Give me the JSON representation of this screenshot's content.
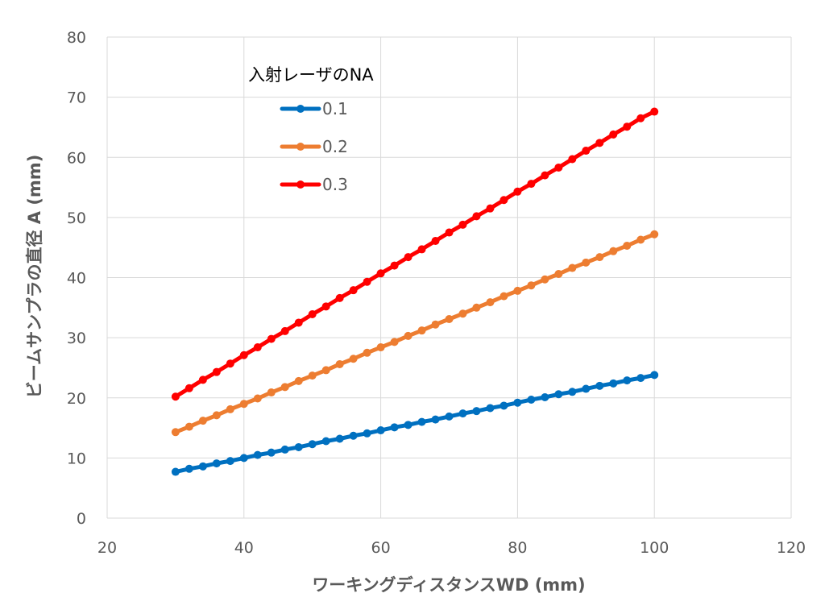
{
  "chart_data": {
    "type": "line",
    "title": "",
    "xlabel": "ワーキングディスタンスWD (mm)",
    "ylabel": "ビームサンプラの直径 A (mm)",
    "xlim": [
      20,
      120
    ],
    "ylim": [
      0,
      80
    ],
    "xticks": [
      "20",
      "40",
      "60",
      "80",
      "100",
      "120"
    ],
    "yticks": [
      "0",
      "10",
      "20",
      "30",
      "40",
      "50",
      "60",
      "70",
      "80"
    ],
    "grid": true,
    "legend": {
      "title": "入射レーザのNA",
      "position": "top-left-inside"
    },
    "x": [
      30,
      32,
      34,
      36,
      38,
      40,
      42,
      44,
      46,
      48,
      50,
      52,
      54,
      56,
      58,
      60,
      62,
      64,
      66,
      68,
      70,
      72,
      74,
      76,
      78,
      80,
      82,
      84,
      86,
      88,
      90,
      92,
      94,
      96,
      98,
      100
    ],
    "series": [
      {
        "name": "0.1",
        "color": "#0070c0",
        "values": [
          7.7,
          8.2,
          8.6,
          9.1,
          9.5,
          10.0,
          10.5,
          10.9,
          11.4,
          11.8,
          12.3,
          12.8,
          13.2,
          13.7,
          14.1,
          14.6,
          15.1,
          15.5,
          16.0,
          16.4,
          16.9,
          17.4,
          17.8,
          18.3,
          18.7,
          19.2,
          19.7,
          20.1,
          20.6,
          21.0,
          21.5,
          22.0,
          22.4,
          22.9,
          23.3,
          23.8
        ]
      },
      {
        "name": "0.2",
        "color": "#ed7d31",
        "values": [
          14.3,
          15.2,
          16.2,
          17.1,
          18.1,
          19.0,
          19.9,
          20.9,
          21.8,
          22.8,
          23.7,
          24.6,
          25.6,
          26.5,
          27.5,
          28.4,
          29.3,
          30.3,
          31.2,
          32.2,
          33.1,
          34.0,
          35.0,
          35.9,
          36.9,
          37.8,
          38.7,
          39.7,
          40.6,
          41.6,
          42.5,
          43.4,
          44.4,
          45.3,
          46.3,
          47.2
        ]
      },
      {
        "name": "0.3",
        "color": "#ff0000",
        "values": [
          20.2,
          21.6,
          23.0,
          24.3,
          25.7,
          27.1,
          28.4,
          29.8,
          31.1,
          32.5,
          33.9,
          35.2,
          36.6,
          37.9,
          39.3,
          40.7,
          42.0,
          43.4,
          44.7,
          46.1,
          47.5,
          48.8,
          50.2,
          51.5,
          52.9,
          54.3,
          55.6,
          57.0,
          58.3,
          59.7,
          61.1,
          62.4,
          63.8,
          65.1,
          66.5,
          67.6
        ]
      }
    ]
  }
}
